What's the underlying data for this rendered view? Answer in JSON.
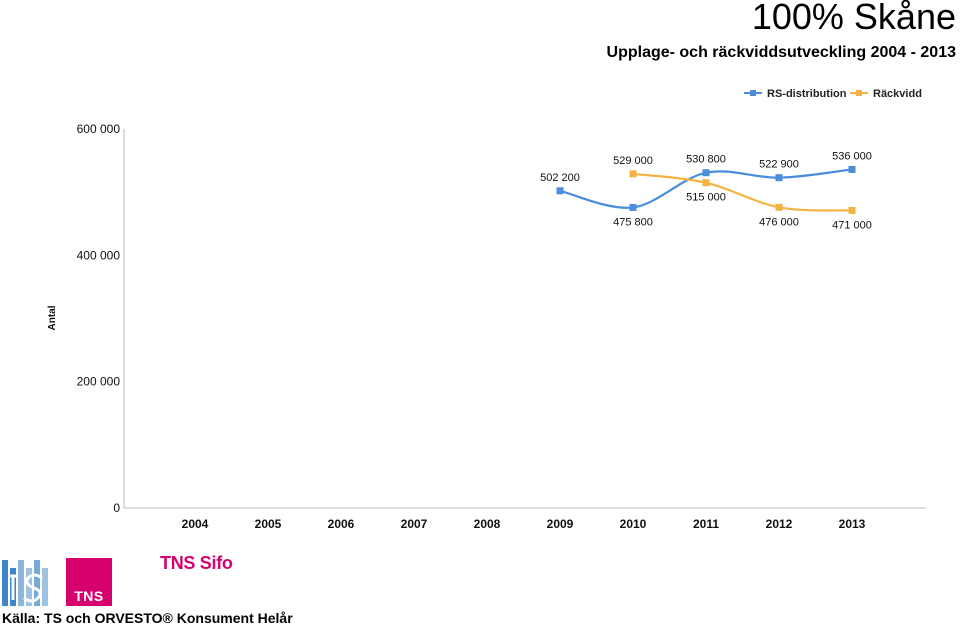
{
  "header": {
    "title": "100% Skåne",
    "subtitle": "Upplage- och räckviddsutveckling 2004 - 2013"
  },
  "chart_data": {
    "type": "line",
    "categories": [
      "2004",
      "2005",
      "2006",
      "2007",
      "2008",
      "2009",
      "2010",
      "2011",
      "2012",
      "2013"
    ],
    "ylabel": "Antal",
    "ylim": [
      0,
      600000
    ],
    "yticks": [
      0,
      200000,
      400000,
      600000
    ],
    "ytick_labels": [
      "0",
      "200 000",
      "400 000",
      "600 000"
    ],
    "legend_position": "top-right",
    "grid": false,
    "series": [
      {
        "name": "RS-distribution",
        "color": "#4a8ddc",
        "values": [
          null,
          null,
          null,
          null,
          null,
          502200,
          475800,
          530800,
          522900,
          536000
        ],
        "labels": [
          null,
          null,
          null,
          null,
          null,
          "502 200",
          "475 800",
          "530 800",
          "522 900",
          "536 000"
        ]
      },
      {
        "name": "Räckvidd",
        "color": "#f4b340",
        "values": [
          null,
          null,
          null,
          null,
          null,
          null,
          529000,
          515000,
          476000,
          471000
        ],
        "labels": [
          null,
          null,
          null,
          null,
          null,
          null,
          "529 000",
          "515 000",
          "476 000",
          "471 000"
        ]
      }
    ]
  },
  "footer": {
    "source": "Källa: TS och ORVESTO® Konsument Helår",
    "tns_logo_text": "TNS",
    "sifo_logo_text": "TNS Sifo"
  }
}
